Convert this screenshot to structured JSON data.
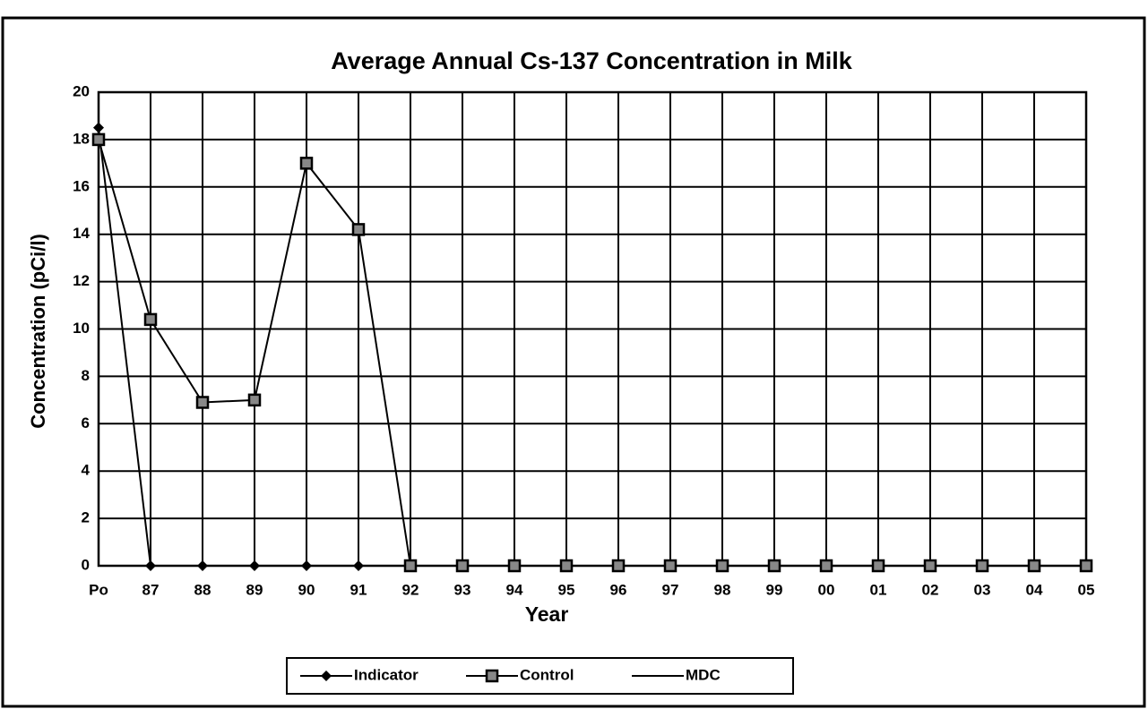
{
  "chart_data": {
    "type": "line",
    "title": "Average Annual Cs-137 Concentration in Milk",
    "xlabel": "Year",
    "ylabel": "Concentration (pCi/l)",
    "categories": [
      "Po",
      "87",
      "88",
      "89",
      "90",
      "91",
      "92",
      "93",
      "94",
      "95",
      "96",
      "97",
      "98",
      "99",
      "00",
      "01",
      "02",
      "03",
      "04",
      "05"
    ],
    "series": [
      {
        "name": "Indicator",
        "color": "#000000",
        "marker": "diamond",
        "values": [
          18.5,
          0,
          0,
          0,
          0,
          0,
          0,
          0,
          0,
          0,
          0,
          0,
          0,
          0,
          0,
          0,
          0,
          0,
          0,
          0
        ]
      },
      {
        "name": "Control",
        "color": "#000000",
        "marker": "square",
        "values": [
          18,
          10.4,
          6.9,
          7,
          17,
          14.2,
          0,
          0,
          0,
          0,
          0,
          0,
          0,
          0,
          0,
          0,
          0,
          0,
          0,
          0
        ]
      },
      {
        "name": "MDC",
        "color": "#000000",
        "marker": "none",
        "values": [
          null,
          null,
          null,
          null,
          null,
          null,
          null,
          null,
          null,
          null,
          null,
          null,
          null,
          null,
          null,
          null,
          null,
          null,
          null,
          null
        ]
      }
    ],
    "ylim": [
      0,
      20
    ],
    "yticks": [
      0,
      2,
      4,
      6,
      8,
      10,
      12,
      14,
      16,
      18,
      20
    ],
    "grid": true,
    "legend": "bottom"
  }
}
